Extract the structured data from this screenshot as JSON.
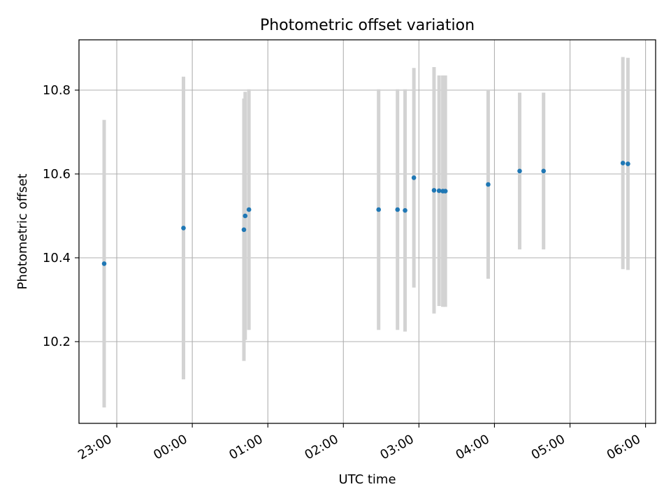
{
  "chart_data": {
    "type": "scatter",
    "title": "Photometric offset variation",
    "xlabel": "UTC time",
    "ylabel": "Photometric offset",
    "x_axis_kind": "time",
    "xlim": [
      "2023-01-01T22:30:00",
      "2023-01-02T06:08:00"
    ],
    "ylim": [
      10.005,
      10.92
    ],
    "x_ticks": [
      {
        "t": "2023-01-01T23:00:00",
        "label": "23:00"
      },
      {
        "t": "2023-01-02T00:00:00",
        "label": "00:00"
      },
      {
        "t": "2023-01-02T01:00:00",
        "label": "01:00"
      },
      {
        "t": "2023-01-02T02:00:00",
        "label": "02:00"
      },
      {
        "t": "2023-01-02T03:00:00",
        "label": "03:00"
      },
      {
        "t": "2023-01-02T04:00:00",
        "label": "04:00"
      },
      {
        "t": "2023-01-02T05:00:00",
        "label": "05:00"
      },
      {
        "t": "2023-01-02T06:00:00",
        "label": "06:00"
      }
    ],
    "y_ticks": [
      {
        "v": 10.2,
        "label": "10.2"
      },
      {
        "v": 10.4,
        "label": "10.4"
      },
      {
        "v": 10.6,
        "label": "10.6"
      },
      {
        "v": 10.8,
        "label": "10.8"
      }
    ],
    "grid": true,
    "marker_color": "#1f77b4",
    "errorbar_color": "#d3d3d3",
    "series": [
      {
        "points": [
          {
            "x": "2023-01-01T22:50:00",
            "y": 10.386,
            "err": 0.343
          },
          {
            "x": "2023-01-01T23:53:00",
            "y": 10.471,
            "err": 0.361
          },
          {
            "x": "2023-01-02T00:41:00",
            "y": 10.467,
            "err": 0.313
          },
          {
            "x": "2023-01-02T00:42:00",
            "y": 10.5,
            "err": 0.296
          },
          {
            "x": "2023-01-02T00:45:00",
            "y": 10.515,
            "err": 0.287
          },
          {
            "x": "2023-01-02T02:28:00",
            "y": 10.515,
            "err": 0.287
          },
          {
            "x": "2023-01-02T02:43:00",
            "y": 10.515,
            "err": 0.287
          },
          {
            "x": "2023-01-02T02:49:00",
            "y": 10.513,
            "err": 0.289
          },
          {
            "x": "2023-01-02T02:56:00",
            "y": 10.591,
            "err": 0.262
          },
          {
            "x": "2023-01-02T03:12:00",
            "y": 10.561,
            "err": 0.294
          },
          {
            "x": "2023-01-02T03:16:00",
            "y": 10.56,
            "err": 0.275
          },
          {
            "x": "2023-01-02T03:19:00",
            "y": 10.559,
            "err": 0.276
          },
          {
            "x": "2023-01-02T03:21:00",
            "y": 10.559,
            "err": 0.276
          },
          {
            "x": "2023-01-02T03:55:00",
            "y": 10.575,
            "err": 0.225
          },
          {
            "x": "2023-01-02T04:20:00",
            "y": 10.607,
            "err": 0.187
          },
          {
            "x": "2023-01-02T04:39:00",
            "y": 10.607,
            "err": 0.187
          },
          {
            "x": "2023-01-02T05:42:00",
            "y": 10.626,
            "err": 0.253
          },
          {
            "x": "2023-01-02T05:46:00",
            "y": 10.624,
            "err": 0.253
          }
        ]
      }
    ]
  }
}
